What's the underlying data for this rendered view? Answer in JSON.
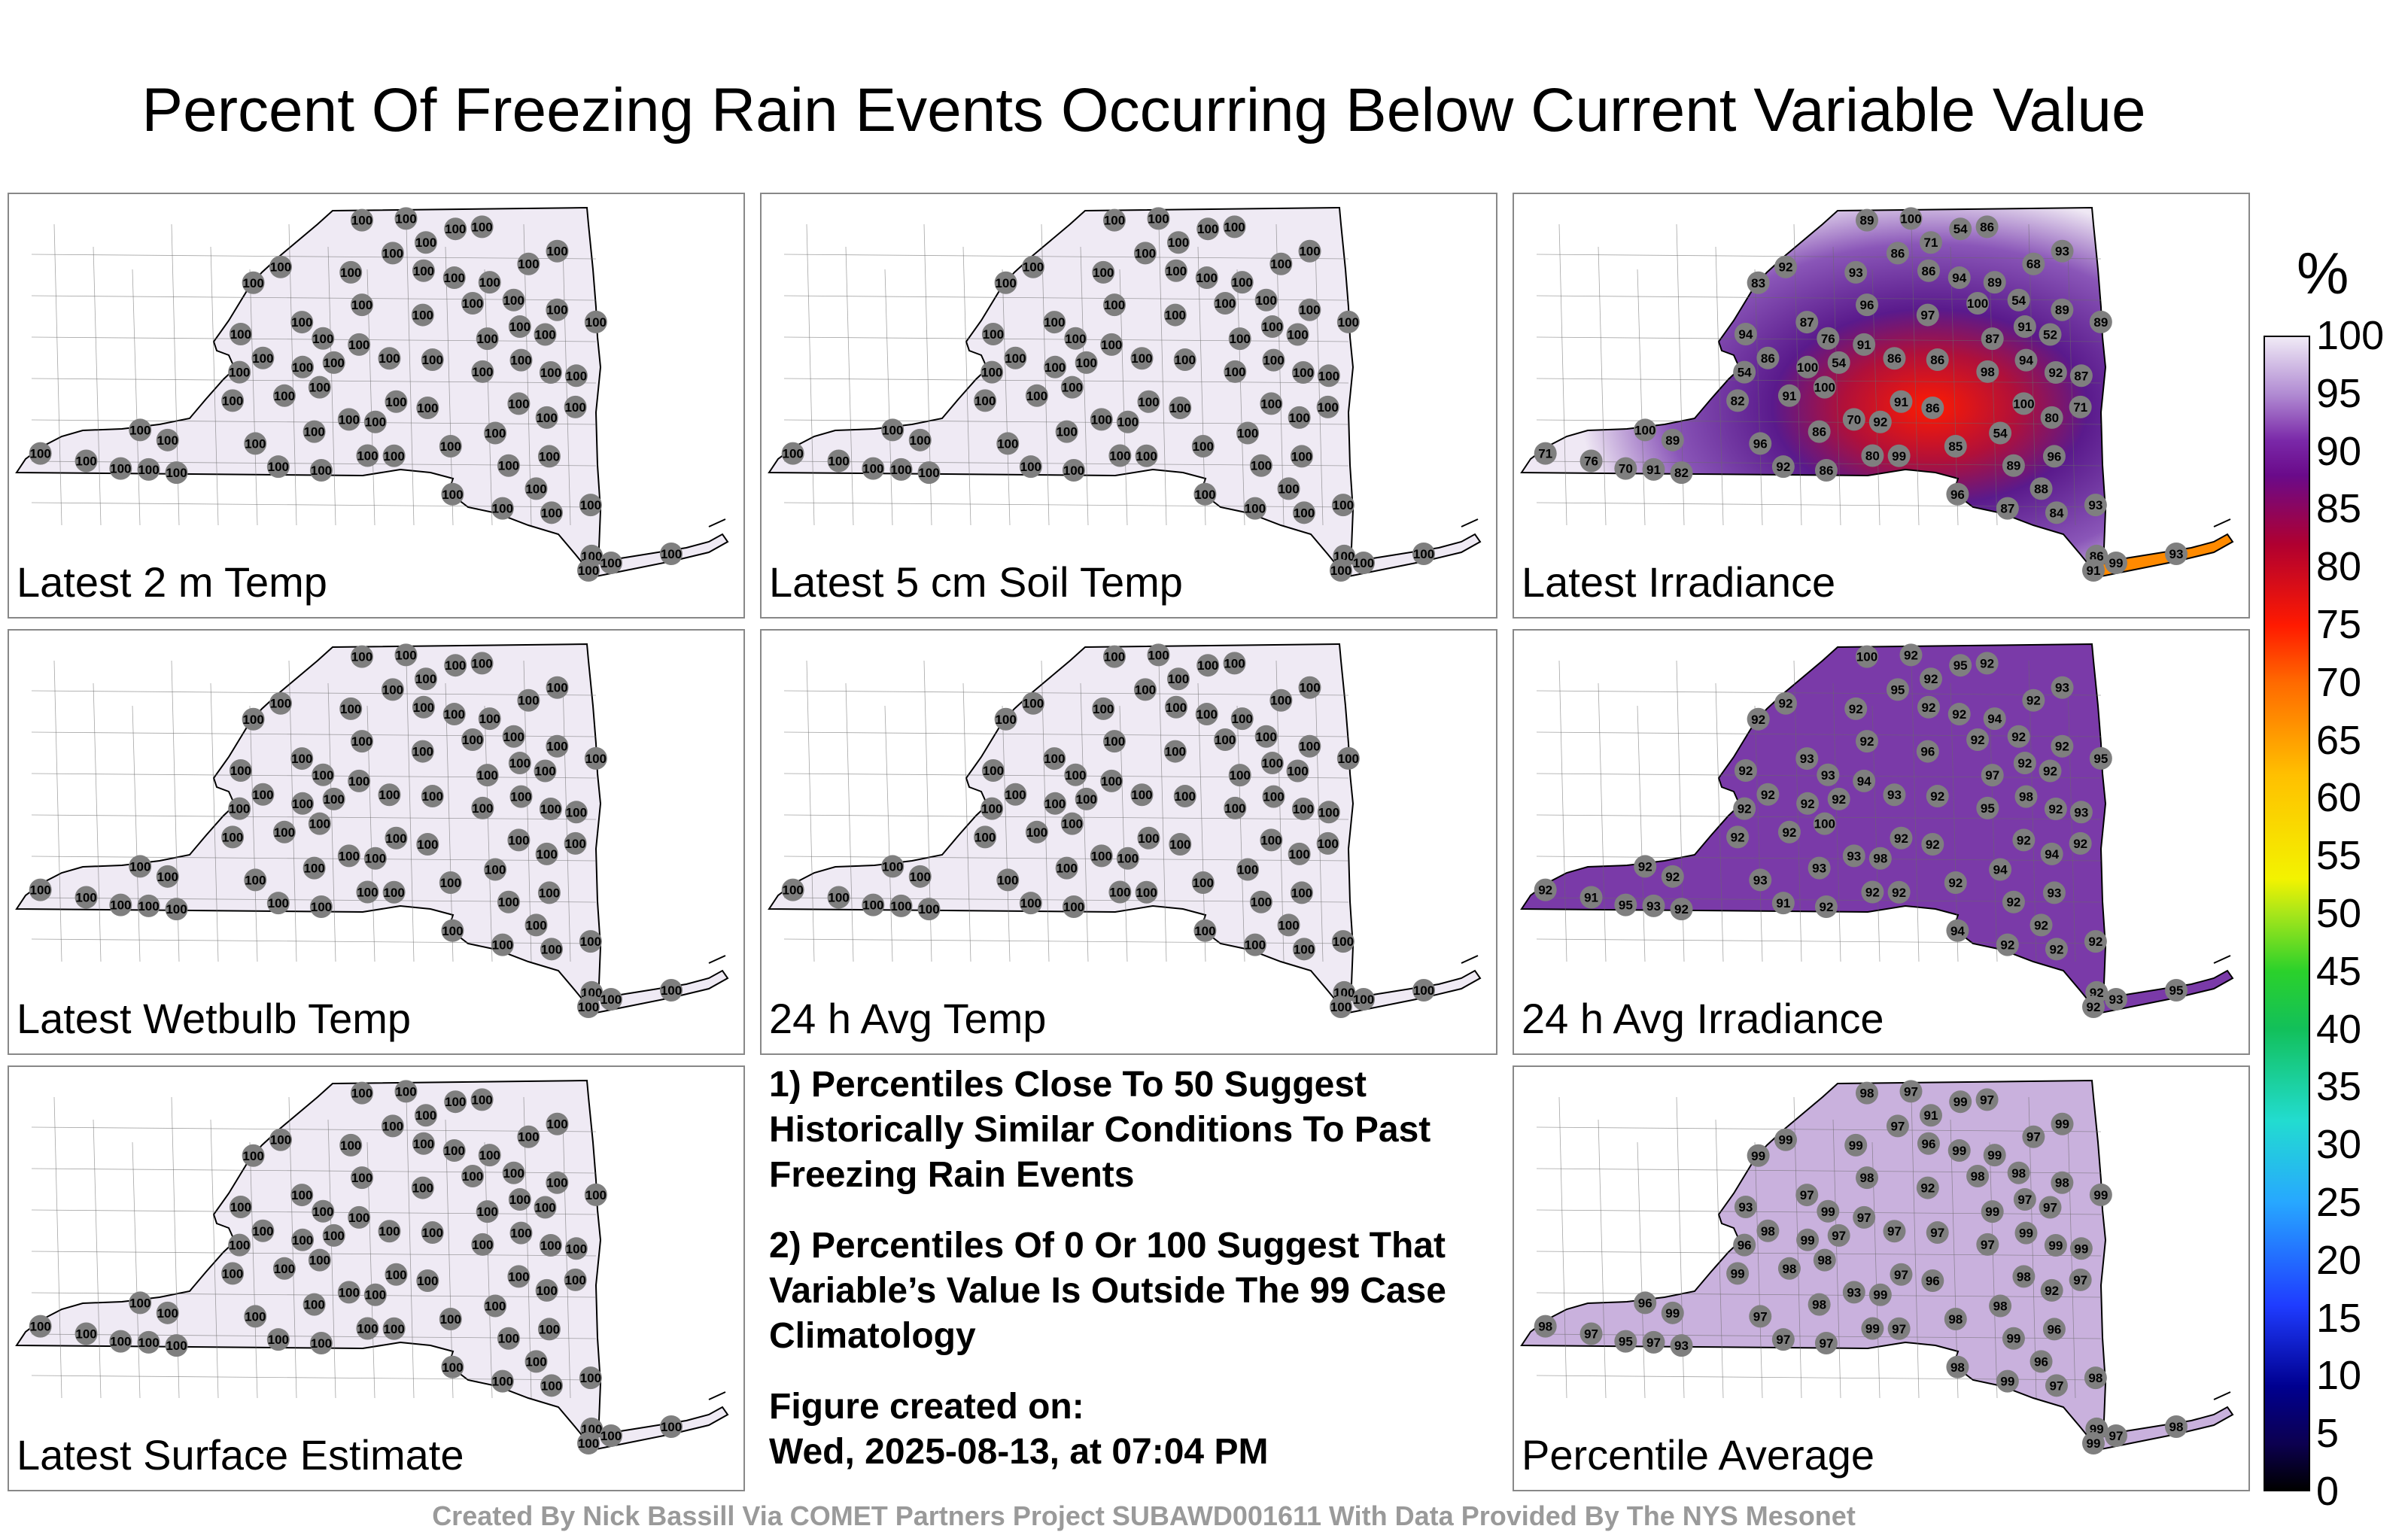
{
  "title": "Percent Of Freezing Rain Events Occurring Below Current Variable Value",
  "colors": {
    "state_fill_default": "#efeaf4",
    "station_marker": "#7f7f7f",
    "irradiance_high": "#5a1a8c",
    "irradiance_low": "#ff2a00",
    "average_fill": "#c9b1dd"
  },
  "panels": [
    {
      "label": "Latest 2 m Temp",
      "style": "uniform"
    },
    {
      "label": "Latest 5 cm Soil Temp",
      "style": "uniform"
    },
    {
      "label": "Latest Irradiance",
      "style": "irradiance"
    },
    {
      "label": "Latest Wetbulb Temp",
      "style": "uniform"
    },
    {
      "label": "24 h Avg Temp",
      "style": "uniform"
    },
    {
      "label": "24 h Avg Irradiance",
      "style": "avg-irradiance"
    },
    {
      "label": "Latest Surface Estimate",
      "style": "uniform"
    },
    {
      "label": "Percentile Average",
      "style": "average"
    }
  ],
  "station_values": {
    "uniform": "100",
    "irradiance": [
      "91",
      "89",
      "92",
      "91",
      "99",
      "93",
      "96",
      "86",
      "87",
      "100",
      "93",
      "85",
      "86",
      "100",
      "89",
      "91",
      "86",
      "83",
      "93",
      "87",
      "100",
      "94",
      "82",
      "86",
      "98",
      "89",
      "92",
      "86",
      "87",
      "96",
      "100",
      "86",
      "91",
      "84",
      "86",
      "96",
      "100",
      "87",
      "86",
      "96",
      "88",
      "89",
      "86",
      "70",
      "70",
      "100",
      "97",
      "80",
      "82",
      "71",
      "76",
      "94",
      "71",
      "92",
      "86",
      "68",
      "71",
      "89",
      "54",
      "94",
      "80",
      "54",
      "54",
      "54",
      "52",
      "54",
      "76"
    ],
    "avg_irradiance": [
      "92",
      "92",
      "91",
      "92",
      "92",
      "92",
      "93",
      "92",
      "92",
      "92",
      "92",
      "92",
      "92",
      "92",
      "95",
      "94",
      "92",
      "92",
      "93",
      "93",
      "100",
      "98",
      "92",
      "93",
      "95",
      "92",
      "92",
      "92",
      "97",
      "94",
      "92",
      "95",
      "92",
      "92",
      "92",
      "93",
      "92",
      "93",
      "92",
      "92",
      "92",
      "94",
      "92",
      "95",
      "93",
      "92",
      "96",
      "94"
    ],
    "average": [
      "98",
      "99",
      "97",
      "97",
      "97",
      "98",
      "97",
      "99",
      "99",
      "98",
      "99",
      "98",
      "97",
      "96",
      "99",
      "97",
      "98",
      "99",
      "99",
      "97",
      "98",
      "99",
      "99",
      "98",
      "97",
      "99",
      "99",
      "96",
      "99",
      "98",
      "98",
      "97",
      "97",
      "97",
      "96",
      "96",
      "99",
      "99",
      "97",
      "98",
      "96",
      "99",
      "97",
      "95",
      "93",
      "97",
      "92",
      "92",
      "93",
      "91",
      "97",
      "93"
    ]
  },
  "notes": [
    "1) Percentiles Close To 50 Suggest Historically Similar Conditions To Past Freezing Rain Events",
    "2) Percentiles Of 0 Or 100 Suggest That Variable’s Value Is Outside The 99 Case Climatology",
    "Figure created on:",
    "Wed, 2025-08-13, at 07:04 PM"
  ],
  "colorbar": {
    "unit": "%",
    "ticks": [
      "100",
      "95",
      "90",
      "85",
      "80",
      "75",
      "70",
      "65",
      "60",
      "55",
      "50",
      "45",
      "40",
      "35",
      "30",
      "25",
      "20",
      "15",
      "10",
      "5",
      "0"
    ]
  },
  "footer": "Created By Nick Bassill Via COMET Partners Project SUBAWD001611 With Data Provided By The NYS Mesonet"
}
